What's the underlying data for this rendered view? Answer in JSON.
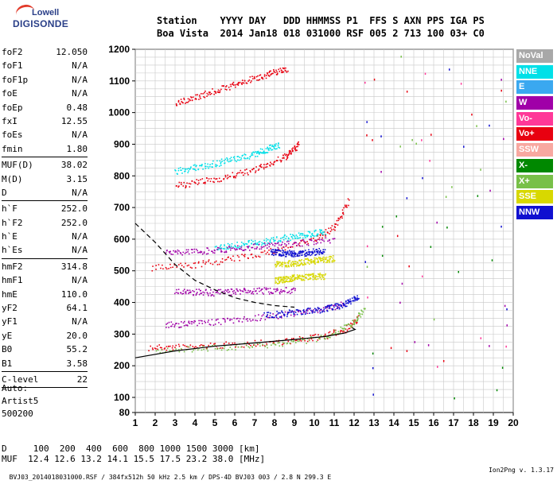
{
  "logo": {
    "line1": "Lowell",
    "line2": "DIGISONDE"
  },
  "header": {
    "line1": "Station    YYYY DAY   DDD HHMMSS P1  FFS S AXN PPS IGA PS",
    "line2": "Boa Vista  2014 Jan18 018 031000 RSF 005 2 713 100 03+ C0"
  },
  "params": {
    "group1": [
      {
        "name": "foF2",
        "value": "12.050"
      },
      {
        "name": "foF1",
        "value": "N/A"
      },
      {
        "name": "foF1p",
        "value": "N/A"
      },
      {
        "name": "foE",
        "value": "N/A"
      },
      {
        "name": "foEp",
        "value": "0.48"
      },
      {
        "name": "fxI",
        "value": "12.55"
      },
      {
        "name": "foEs",
        "value": "N/A"
      },
      {
        "name": "fmin",
        "value": "1.80"
      }
    ],
    "group2": [
      {
        "name": "MUF(D)",
        "value": "38.02"
      },
      {
        "name": "M(D)",
        "value": "3.15"
      },
      {
        "name": "D",
        "value": "N/A"
      }
    ],
    "group3": [
      {
        "name": "h`F",
        "value": "252.0"
      },
      {
        "name": "h`F2",
        "value": "252.0"
      },
      {
        "name": "h`E",
        "value": "N/A"
      },
      {
        "name": "h`Es",
        "value": "N/A"
      }
    ],
    "group4": [
      {
        "name": "hmF2",
        "value": "314.8"
      },
      {
        "name": "hmF1",
        "value": "N/A"
      },
      {
        "name": "hmE",
        "value": "110.0"
      },
      {
        "name": "yF2",
        "value": "64.1"
      },
      {
        "name": "yF1",
        "value": "N/A"
      },
      {
        "name": "yE",
        "value": "20.0"
      },
      {
        "name": "B0",
        "value": "55.2"
      },
      {
        "name": "B1",
        "value": "3.58"
      }
    ],
    "group5": [
      {
        "name": "C-level",
        "value": "22"
      }
    ]
  },
  "auto": {
    "line1": "Auto:",
    "line2": "Artist5",
    "line3": "500200"
  },
  "bottom": {
    "d_line": "D     100  200  400  600  800 1000 1500 3000 [km]",
    "muf_line": "MUF  12.4 12.6 13.2 14.1 15.5 17.5 23.2 38.0 [MHz]"
  },
  "footer": {
    "left": "BVJ03_2014018031000.RSF / 384fx512h 50 kHz 2.5 km / DPS-4D BVJ03 003 / 2.8 N 299.3 E",
    "right": "Ion2Png v. 1.3.17"
  },
  "legend": [
    {
      "label": "NoVal",
      "color": "#a8a8a8"
    },
    {
      "label": "NNE",
      "color": "#00e0e8"
    },
    {
      "label": "E",
      "color": "#3aa8f0"
    },
    {
      "label": "W",
      "color": "#a000a8"
    },
    {
      "label": "Vo-",
      "color": "#ff3898"
    },
    {
      "label": "Vo+",
      "color": "#e80010"
    },
    {
      "label": "SSW",
      "color": "#f8a8a0"
    },
    {
      "label": "X-",
      "color": "#008800"
    },
    {
      "label": "X+",
      "color": "#78c048"
    },
    {
      "label": "SSE",
      "color": "#d8d800"
    },
    {
      "label": "NNW",
      "color": "#1010d0"
    }
  ],
  "chart_data": {
    "type": "scatter",
    "xlim": [
      1,
      20
    ],
    "ylim": [
      80,
      1200
    ],
    "xticks": [
      1,
      2,
      3,
      4,
      5,
      6,
      7,
      8,
      9,
      10,
      11,
      12,
      13,
      14,
      15,
      16,
      17,
      18,
      19,
      20
    ],
    "yticks": [
      80,
      100,
      200,
      300,
      400,
      500,
      600,
      700,
      800,
      900,
      1000,
      1100,
      1200
    ],
    "grid": true,
    "legend_position": "right",
    "series": [
      {
        "name": "Vo+",
        "color": "#e80010",
        "segments": [
          {
            "x": [
              1.7,
              3,
              5,
              7,
              9,
              10.5,
              11.5,
              12.2
            ],
            "y": [
              258,
              260,
              265,
              272,
              282,
              295,
              315,
              350
            ]
          },
          {
            "x": [
              1.8,
              4,
              6,
              8,
              10,
              11,
              11.7
            ],
            "y": [
              510,
              520,
              540,
              565,
              600,
              640,
              720
            ]
          },
          {
            "x": [
              3,
              5,
              7,
              8.5,
              9.2
            ],
            "y": [
              770,
              790,
              820,
              860,
              900
            ]
          },
          {
            "x": [
              3,
              4.5,
              6,
              7.5,
              8.6
            ],
            "y": [
              1030,
              1060,
              1090,
              1120,
              1140
            ]
          }
        ]
      },
      {
        "name": "NNE",
        "color": "#00e0e8",
        "segments": [
          {
            "x": [
              3,
              5,
              7,
              8.2
            ],
            "y": [
              815,
              840,
              870,
              900
            ]
          },
          {
            "x": [
              5,
              7,
              9,
              10.5
            ],
            "y": [
              575,
              590,
              610,
              625
            ]
          }
        ]
      },
      {
        "name": "W",
        "color": "#a000a8",
        "segments": [
          {
            "x": [
              2.5,
              4,
              6,
              8,
              10,
              11.5
            ],
            "y": [
              330,
              335,
              345,
              360,
              375,
              395
            ]
          },
          {
            "x": [
              2.5,
              4.5,
              6.5,
              8.5,
              11
            ],
            "y": [
              560,
              565,
              575,
              585,
              600
            ]
          },
          {
            "x": [
              3,
              5,
              7,
              9
            ],
            "y": [
              435,
              432,
              438,
              440
            ]
          }
        ]
      },
      {
        "name": "NNW",
        "color": "#1010d0",
        "segments": [
          {
            "x": [
              7.5,
              9,
              10.5,
              11.5,
              12.2
            ],
            "y": [
              360,
              370,
              380,
              395,
              420
            ]
          },
          {
            "x": [
              7.8,
              9,
              10.5
            ],
            "y": [
              560,
              555,
              565
            ]
          }
        ]
      },
      {
        "name": "SSE",
        "color": "#d8d800",
        "segments": [
          {
            "x": [
              8,
              9,
              10.5
            ],
            "y": [
              470,
              480,
              485
            ]
          },
          {
            "x": [
              8,
              9.5,
              11
            ],
            "y": [
              520,
              530,
              540
            ]
          }
        ]
      },
      {
        "name": "X+",
        "color": "#78c048",
        "segments": [
          {
            "x": [
              2,
              5,
              8,
              10.5,
              11.8,
              12.5
            ],
            "y": [
              250,
              258,
              270,
              290,
              330,
              380
            ]
          }
        ]
      }
    ],
    "profile_solid": {
      "x": [
        1,
        3,
        5,
        7,
        9,
        10.5,
        11.5,
        12.05,
        11.9
      ],
      "y": [
        225,
        247,
        262,
        272,
        283,
        292,
        303,
        314.8,
        320
      ]
    },
    "profile_dashed": {
      "x": [
        1,
        2,
        3,
        4,
        5,
        6,
        7,
        8,
        9
      ],
      "y": [
        650,
        590,
        520,
        470,
        440,
        415,
        400,
        390,
        385
      ]
    }
  }
}
